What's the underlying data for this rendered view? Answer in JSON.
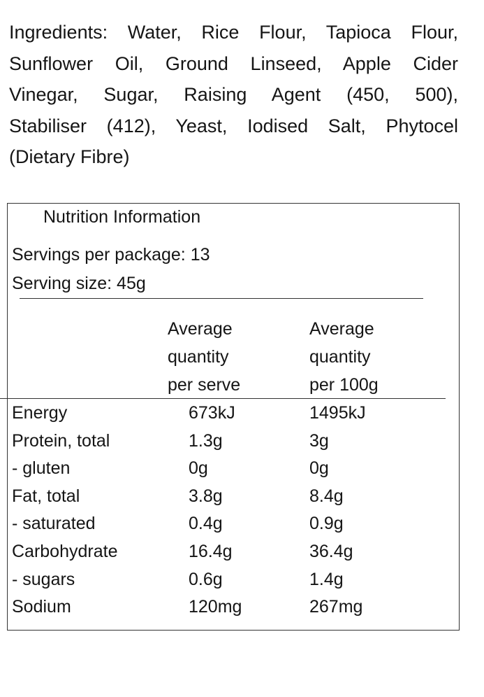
{
  "ingredients": {
    "lines": [
      "Ingredients: Water, Rice Flour, Tapioca Flour,",
      "Sunflower Oil, Ground Linseed, Apple Cider",
      "Vinegar, Sugar, Raising Agent (450, 500),",
      "Stabiliser (412), Yeast, Iodised Salt, Phytocel",
      "(Dietary Fibre)"
    ]
  },
  "nutrition": {
    "title": "Nutrition Information",
    "servings": "Servings per package: 13",
    "serving_size": "Serving size: 45g",
    "columns": [
      [
        "Average",
        "quantity",
        "per serve"
      ],
      [
        "Average",
        "quantity",
        "per 100g"
      ]
    ],
    "rows": [
      [
        "Energy",
        "673kJ",
        "1495kJ"
      ],
      [
        "Protein, total",
        "1.3g",
        "3g"
      ],
      [
        "- gluten",
        "0g",
        "0g"
      ],
      [
        "Fat, total",
        "3.8g",
        "8.4g"
      ],
      [
        "- saturated",
        "0.4g",
        "0.9g"
      ],
      [
        "Carbohydrate",
        "16.4g",
        "36.4g"
      ],
      [
        "- sugars",
        "0.6g",
        "1.4g"
      ],
      [
        "Sodium",
        "120mg",
        "267mg"
      ]
    ]
  }
}
